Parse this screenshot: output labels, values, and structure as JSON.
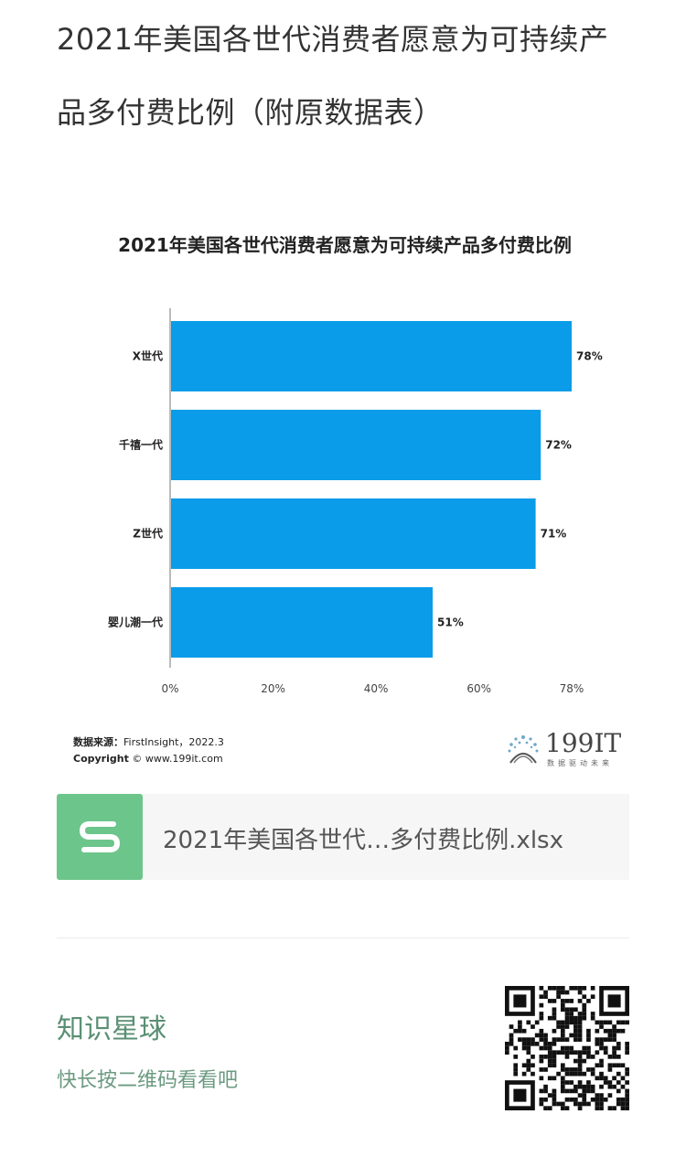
{
  "article": {
    "title_line1": "2021年美国各世代消费者愿意为可持续产",
    "title_line2": "品多付费比例（附原数据表）"
  },
  "chart_data": {
    "type": "bar",
    "orientation": "horizontal",
    "title": "2021年美国各世代消费者愿意为可持续产品多付费比例",
    "categories": [
      "X世代",
      "千禧一代",
      "Z世代",
      "婴儿潮一代"
    ],
    "values": [
      78,
      72,
      71,
      51
    ],
    "data_labels": [
      "78%",
      "72%",
      "71%",
      "51%"
    ],
    "x_ticks": [
      "0%",
      "20%",
      "40%",
      "60%",
      "78%"
    ],
    "x_tick_values": [
      0,
      20,
      40,
      60,
      78
    ],
    "xlim": [
      0,
      78
    ],
    "bar_color": "#0a9ce8",
    "grid": false
  },
  "source": {
    "label": "数据来源：",
    "text": "FirstInsight，2022.3",
    "copyright_label": "Copyright",
    "copyright_text": "© www.199it.com"
  },
  "brand": {
    "name": "199IT",
    "tagline": "数据驱动未来"
  },
  "file": {
    "icon": "spreadsheet-s-icon",
    "name": "2021年美国各世代…多付费比例.xlsx",
    "color": "#6cc58a"
  },
  "promo": {
    "title": "知识星球",
    "subtitle": "快长按二维码看看吧",
    "accent": "#5a8f73"
  }
}
